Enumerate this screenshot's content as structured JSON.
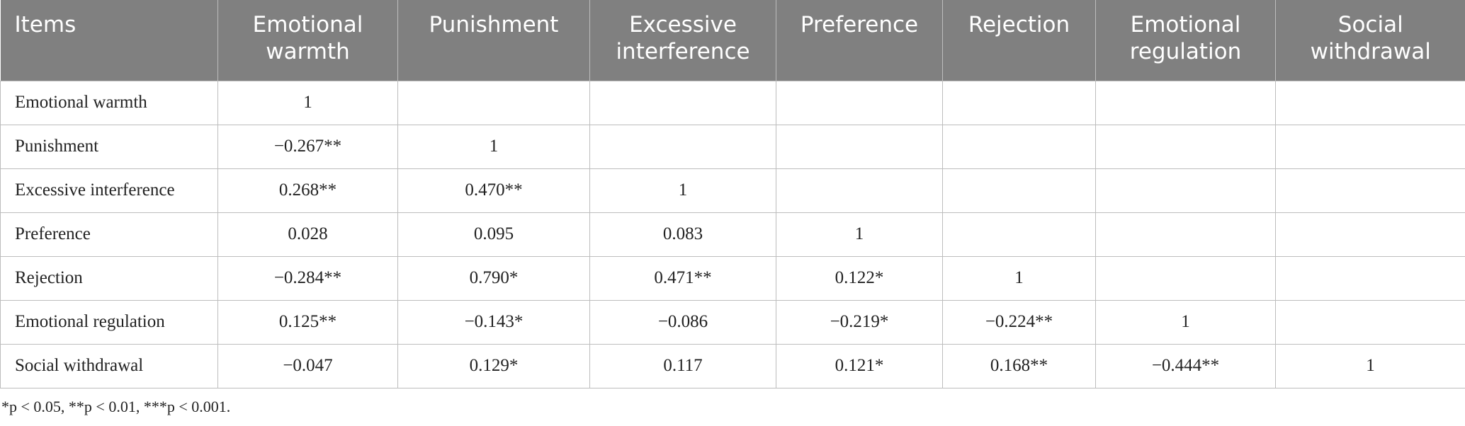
{
  "table": {
    "headers": [
      "Items",
      "Emotional warmth",
      "Punishment",
      "Excessive interference",
      "Preference",
      "Rejection",
      "Emotional regulation",
      "Social withdrawal"
    ],
    "rows": [
      {
        "label": "Emotional warmth",
        "values": [
          "1"
        ]
      },
      {
        "label": "Punishment",
        "values": [
          "−0.267**",
          "1"
        ]
      },
      {
        "label": "Excessive interference",
        "values": [
          "0.268**",
          "0.470**",
          "1"
        ]
      },
      {
        "label": "Preference",
        "values": [
          "0.028",
          "0.095",
          "0.083",
          "1"
        ]
      },
      {
        "label": "Rejection",
        "values": [
          "−0.284**",
          "0.790*",
          "0.471**",
          "0.122*",
          "1"
        ]
      },
      {
        "label": "Emotional regulation",
        "values": [
          "0.125**",
          "−0.143*",
          "−0.086",
          "−0.219*",
          "−0.224**",
          "1"
        ]
      },
      {
        "label": "Social withdrawal",
        "values": [
          "−0.047",
          "0.129*",
          "0.117",
          "0.121*",
          "0.168**",
          "−0.444**",
          "1"
        ]
      }
    ],
    "footnote": "*p < 0.05, **p < 0.01, ***p < 0.001."
  }
}
